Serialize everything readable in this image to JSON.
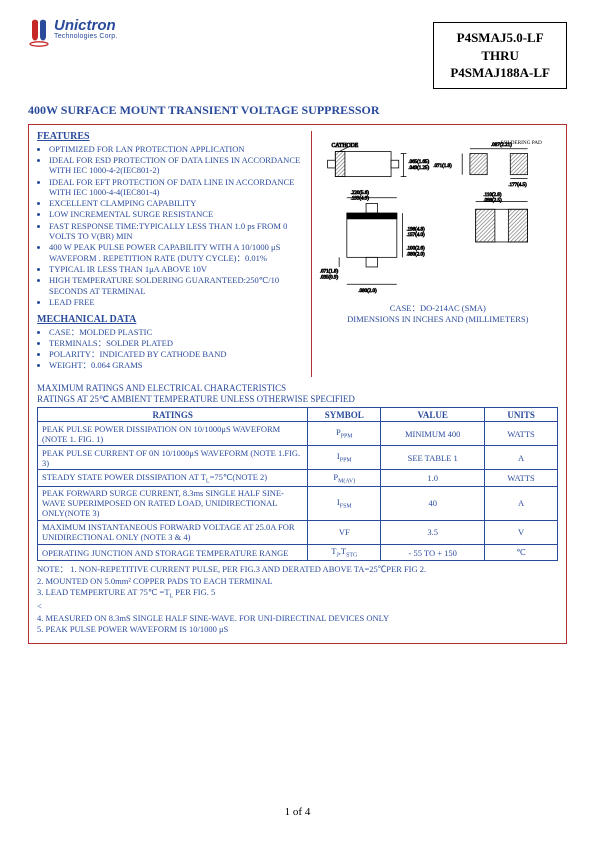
{
  "logo": {
    "name": "Unictron",
    "sub": "Technologies Corp.",
    "colors": {
      "blue": "#2a4b9c",
      "red": "#c62828"
    }
  },
  "part_numbers": {
    "top": "P4SMAJ5.0-LF",
    "mid": "THRU",
    "bot": "P4SMAJ188A-LF"
  },
  "page_title": "400W SURFACE MOUNT TRANSIENT VOLTAGE SUPPRESSOR",
  "sections": {
    "features_head": "FEATURES",
    "mech_head": "MECHANICAL DATA"
  },
  "features": [
    "OPTIMIZED FOR LAN PROTECTION APPLICATION",
    "IDEAL FOR ESD PROTECTION OF DATA LINES IN ACCORDANCE WITH IEC 1000-4-2(IEC801-2)",
    "IDEAL FOR EFT PROTECTION OF DATA LINE IN ACCORDANCE WITH IEC 1000-4-4(IEC801-4)",
    "EXCELLENT CLAMPING CAPABILITY",
    "LOW INCREMENTAL SURGE RESISTANCE",
    "FAST RESPONSE TIME:TYPICALLY LESS THAN 1.0 ps FROM 0 VOLTS TO V(BR) MIN",
    "400 W PEAK PULSE POWER CAPABILITY WITH A 10/1000 μS WAVEFORM . REPETITION RATE (DUTY CYCLE)：0.01%",
    "TYPICAL IR LESS THAN 1μA ABOVE 10V",
    "HIGH TEMPERATURE SOLDERING GUARANTEED:250℃/10 SECONDS AT TERMINAL",
    "LEAD FREE"
  ],
  "mech": [
    "CASE：MOLDED PLASTIC",
    "TERMINALS：SOLDER PLATED",
    "POLARITY：INDICATED BY CATHODE BAND",
    "WEIGHT：0.064 GRAMS"
  ],
  "diagram": {
    "label_left": "CATHODE",
    "label_right": "SOLDERING PAD",
    "case_line": "CASE：DO-214AC (SMA)",
    "dim_line": "DIMENSIONS IN INCHES AND (MILLIMETERS)",
    "dims": {
      "d1": ".065(1.65)\n.049(1.25)",
      "d2": ".087(2.21)",
      "d3": ".071(1.8)",
      "d4": ".177(4.5)",
      "d5": ".220(5.6)\n.193(4.9)",
      "d6": ".110(2.8)\n.098(2.5)",
      "d7": ".198(4.8)\n.157(4.0)",
      "d8": ".100(2.6)\n.080(2.0)",
      "d9": ".071(1.8)\n.035(0.9)",
      "d10": ".080(2.0)"
    }
  },
  "ratings_header1": "MAXIMUM RATINGS AND ELECTRICAL CHARACTERISTICS",
  "ratings_header2": "RATINGS AT 25℃ AMBIENT TEMPERATURE UNLESS OTHERWISE SPECIFIED",
  "table": {
    "head": {
      "ratings": "RATINGS",
      "symbol": "SYMBOL",
      "value": "VALUE",
      "units": "UNITS"
    },
    "rows": [
      {
        "r": "PEAK PULSE POWER DISSIPATION ON 10/1000μS WAVEFORM (NOTE 1. FIG. 1)",
        "s": "P<sub>PPM</sub>",
        "v": "MINIMUM 400",
        "u": "WATTS"
      },
      {
        "r": "PEAK PULSE CURRENT OF 0N 10/1000μS WAVEFORM (NOTE 1.FIG. 3)",
        "s": "I<sub>PPM</sub>",
        "v": "SEE TABLE 1",
        "u": "A"
      },
      {
        "r": "STEADY STATE POWER DISSIPATION AT T<sub>L</sub>=75℃(NOTE 2)",
        "s": "P<sub>M(AV)</sub>",
        "v": "1.0",
        "u": "WATTS"
      },
      {
        "r": "PEAK FORWARD SURGE CURRENT, 8.3ms SINGLE HALF SINE-WAVE SUPERIMPOSED ON RATED LOAD, UNIDIRECTIONAL ONLY(NOTE 3)",
        "s": "I<sub>FSM</sub>",
        "v": "40",
        "u": "A"
      },
      {
        "r": "MAXIMUM INSTANTANEOUS FORWARD VOLTAGE AT 25.0A FOR UNIDIRECTIONAL ONLY (NOTE 3 & 4)",
        "s": "VF",
        "v": "3.5",
        "u": "V"
      },
      {
        "r": "OPERATING JUNCTION AND STORAGE TEMPERATURE RANGE",
        "s": "T<sub>J</sub>,T<sub>STG</sub>",
        "v": "- 55 TO + 150",
        "u": "℃"
      }
    ]
  },
  "notes": {
    "lead": "NOTE：",
    "n1": "1. NON-REPETITIVE CURRENT PULSE, PER FIG.3 AND DERATED ABOVE TA=25℃PER FIG 2.",
    "n2": "2. MOUNTED ON 5.0mm² COPPER PADS TO EACH TERMINAL",
    "n3": "3. LEAD TEMPERTURE AT 75℃ =T<sub>L</sub> PER FIG. 5",
    "n4": "4. MEASURED ON 8.3mS SINGLE HALF SINE-WAVE. FOR UNI-DIRECTINAL DEVICES ONLY",
    "n5": "5. PEAK PULSE POWER WAVEFORM IS 10/1000 μS"
  },
  "footer": "1 of 4",
  "colors": {
    "frame": "#b03030",
    "text": "#2a4b9c",
    "black": "#000000",
    "hatch": "#555555"
  }
}
